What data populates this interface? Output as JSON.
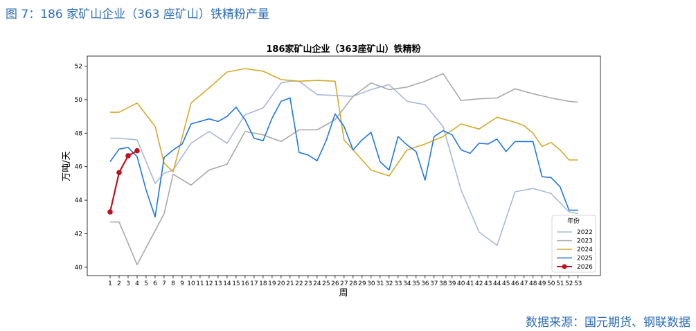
{
  "caption": "图 7：186 家矿山企业（363 座矿山）铁精粉产量",
  "source": "数据来源：国元期货、钢联数据",
  "chart_data": {
    "type": "line",
    "title": "186家矿山企业（363座矿山）铁精粉",
    "xlabel": "周",
    "ylabel": "万吨/天",
    "ylim": [
      39.5,
      52.6
    ],
    "yticks": [
      40,
      42,
      44,
      46,
      48,
      50,
      52
    ],
    "grid": false,
    "legend_title": "年份",
    "legend_placement": "lower-right",
    "x": [
      1,
      2,
      3,
      4,
      5,
      6,
      7,
      8,
      9,
      10,
      11,
      12,
      13,
      14,
      15,
      16,
      17,
      18,
      19,
      20,
      21,
      22,
      23,
      24,
      25,
      26,
      27,
      28,
      29,
      30,
      31,
      32,
      33,
      34,
      35,
      36,
      37,
      38,
      39,
      40,
      41,
      42,
      43,
      44,
      45,
      46,
      47,
      48,
      49,
      50,
      51,
      52,
      53
    ],
    "series": [
      {
        "name": "2022",
        "color": "#a8b8d8",
        "marker": false,
        "values": [
          47.7,
          47.7,
          47.65,
          47.6,
          null,
          45.0,
          45.6,
          45.8,
          null,
          47.4,
          null,
          48.1,
          null,
          47.4,
          null,
          49.1,
          null,
          49.5,
          null,
          51.0,
          51.1,
          51.1,
          null,
          50.3,
          null,
          50.25,
          null,
          50.2,
          null,
          50.6,
          null,
          50.9,
          null,
          49.9,
          null,
          49.7,
          null,
          48.4,
          null,
          44.6,
          null,
          42.1,
          null,
          41.3,
          null,
          44.5,
          null,
          44.7,
          null,
          44.4,
          null,
          43.3,
          43.2
        ]
      },
      {
        "name": "2023",
        "color": "#a8a8a8",
        "marker": false,
        "values": [
          42.7,
          42.7,
          null,
          40.15,
          null,
          null,
          43.2,
          45.55,
          null,
          44.9,
          null,
          45.8,
          null,
          46.15,
          null,
          48.1,
          null,
          47.9,
          null,
          47.5,
          null,
          48.2,
          null,
          48.2,
          null,
          48.8,
          null,
          50.2,
          null,
          51.0,
          null,
          50.6,
          null,
          50.75,
          null,
          51.1,
          null,
          51.55,
          null,
          49.95,
          null,
          50.05,
          null,
          50.1,
          null,
          50.65,
          null,
          50.35,
          null,
          50.1,
          null,
          49.9,
          49.85
        ]
      },
      {
        "name": "2024",
        "color": "#d4aa2a",
        "marker": false,
        "values": [
          49.25,
          49.25,
          null,
          49.8,
          null,
          48.4,
          46.2,
          45.7,
          null,
          49.8,
          null,
          50.7,
          null,
          51.65,
          null,
          51.85,
          null,
          51.7,
          null,
          51.2,
          null,
          51.1,
          null,
          51.15,
          null,
          51.1,
          47.6,
          null,
          null,
          45.8,
          null,
          45.45,
          null,
          47.0,
          null,
          47.35,
          null,
          47.8,
          null,
          48.55,
          null,
          48.25,
          null,
          48.95,
          null,
          48.65,
          48.45,
          48.0,
          47.2,
          47.45,
          47.0,
          46.4,
          46.4
        ]
      },
      {
        "name": "2025",
        "color": "#1f77e0",
        "marker": false,
        "values": [
          46.3,
          47.05,
          47.15,
          46.6,
          44.6,
          43.0,
          46.55,
          47.0,
          47.35,
          48.55,
          48.7,
          48.85,
          48.7,
          49.0,
          49.55,
          48.8,
          47.7,
          47.55,
          48.9,
          49.9,
          50.1,
          46.85,
          46.7,
          46.35,
          47.55,
          49.15,
          48.4,
          47.0,
          47.6,
          48.05,
          46.3,
          45.8,
          47.8,
          47.3,
          46.9,
          45.2,
          47.8,
          48.15,
          47.9,
          47.0,
          46.8,
          47.4,
          47.35,
          47.65,
          46.9,
          47.5,
          47.5,
          47.5,
          45.4,
          45.35,
          44.8,
          43.4,
          43.4
        ]
      },
      {
        "name": "2026",
        "color": "#c0101e",
        "marker": true,
        "values": [
          43.3,
          45.65,
          46.65,
          46.95,
          null,
          null,
          null,
          null,
          null,
          null,
          null,
          null,
          null,
          null,
          null,
          null,
          null,
          null,
          null,
          null,
          null,
          null,
          null,
          null,
          null,
          null,
          null,
          null,
          null,
          null,
          null,
          null,
          null,
          null,
          null,
          null,
          null,
          null,
          null,
          null,
          null,
          null,
          null,
          null,
          null,
          null,
          null,
          null,
          null,
          null,
          null,
          null,
          null
        ]
      }
    ]
  }
}
